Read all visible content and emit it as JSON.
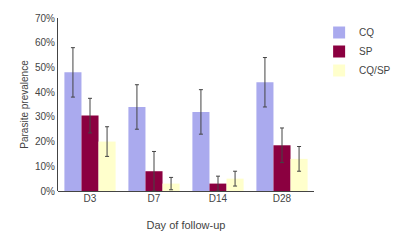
{
  "chart_data": {
    "type": "bar",
    "categories": [
      "D3",
      "D7",
      "D14",
      "D28"
    ],
    "series": [
      {
        "name": "CQ",
        "color": "#aaaaee",
        "values": [
          48,
          34,
          32,
          44
        ],
        "errors": [
          10,
          9,
          9,
          10
        ]
      },
      {
        "name": "SP",
        "color": "#8b0040",
        "values": [
          30.5,
          8,
          3,
          18.5
        ],
        "errors": [
          7,
          8,
          3,
          7
        ]
      },
      {
        "name": "CQ/SP",
        "color": "#ffffcc",
        "values": [
          20,
          3,
          5,
          13
        ],
        "errors": [
          6,
          2.5,
          3,
          5
        ]
      }
    ],
    "xlabel": "Day of follow-up",
    "ylabel": "Parasite prevalence",
    "ylim": [
      0,
      70
    ],
    "yticks": [
      {
        "value": 0,
        "label": "0%"
      },
      {
        "value": 10,
        "label": "10%"
      },
      {
        "value": 20,
        "label": "20%"
      },
      {
        "value": 30,
        "label": "30%"
      },
      {
        "value": 40,
        "label": "40%"
      },
      {
        "value": 50,
        "label": "50%"
      },
      {
        "value": 60,
        "label": "60%"
      },
      {
        "value": 70,
        "label": "70%"
      }
    ],
    "grid": false,
    "legend": "right"
  }
}
